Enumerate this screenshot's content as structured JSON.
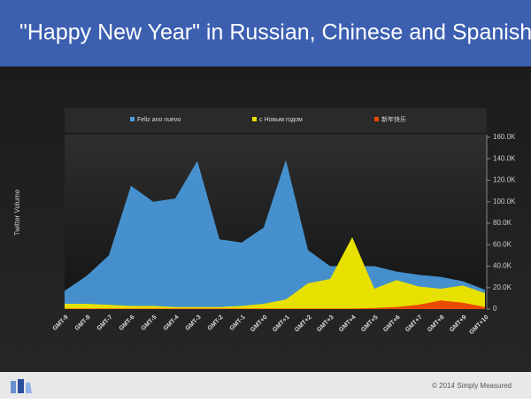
{
  "header": {
    "title": "\"Happy New Year\" in Russian, Chinese and Spanish"
  },
  "footer": {
    "copyright": "© 2014 Simply Measured"
  },
  "chart_data": {
    "type": "area",
    "y_label": "Twitter Volume",
    "categories": [
      "GMT-9",
      "GMT-8",
      "GMT-7",
      "GMT-6",
      "GMT-5",
      "GMT-4",
      "GMT-3",
      "GMT-2",
      "GMT-1",
      "GMT+0",
      "GMT+1",
      "GMT+2",
      "GMT+3",
      "GMT+4",
      "GMT+5",
      "GMT+6",
      "GMT+7",
      "GMT+8",
      "GMT+9",
      "GMT+10"
    ],
    "series": [
      {
        "name": "Feliz ano nuevo",
        "color": "#4a9de0",
        "values": [
          17000,
          31000,
          50000,
          115000,
          100000,
          103000,
          138000,
          65000,
          62000,
          76000,
          139000,
          55000,
          40000,
          40000,
          40000,
          35000,
          32000,
          30000,
          26000,
          18000
        ]
      },
      {
        "name": "с Новым годом",
        "color": "#e8e000",
        "values": [
          5000,
          5000,
          4000,
          3000,
          3000,
          2000,
          2000,
          2000,
          3000,
          5000,
          9000,
          24000,
          28000,
          67000,
          19000,
          27000,
          21000,
          19000,
          22000,
          15000
        ]
      },
      {
        "name": "新年快乐",
        "color": "#e84a00",
        "values": [
          500,
          500,
          500,
          500,
          500,
          500,
          500,
          500,
          500,
          500,
          500,
          500,
          500,
          500,
          1000,
          2000,
          4000,
          8000,
          6000,
          2000
        ]
      }
    ],
    "ylim": [
      0,
      160000
    ],
    "yticks": [
      {
        "value": 0,
        "label": "0"
      },
      {
        "value": 20000,
        "label": "20.0K"
      },
      {
        "value": 40000,
        "label": "40.0K"
      },
      {
        "value": 60000,
        "label": "60.0K"
      },
      {
        "value": 80000,
        "label": "80.0K"
      },
      {
        "value": 100000,
        "label": "100.0K"
      },
      {
        "value": 120000,
        "label": "120.0K"
      },
      {
        "value": 140000,
        "label": "140.0K"
      },
      {
        "value": 160000,
        "label": "160.0K"
      }
    ],
    "legend": "top"
  }
}
